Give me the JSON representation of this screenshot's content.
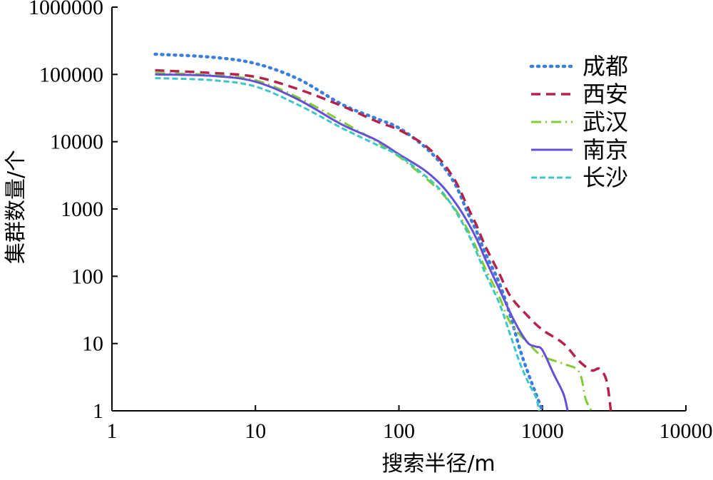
{
  "chart_data": {
    "type": "line",
    "xlabel": "搜索半径/m",
    "ylabel": "集群数量/个",
    "xscale": "log",
    "yscale": "log",
    "xlim": [
      1,
      10000
    ],
    "ylim": [
      1,
      1000000
    ],
    "xticks": [
      "1",
      "10",
      "100",
      "1000",
      "10000"
    ],
    "yticks": [
      "1",
      "10",
      "100",
      "1000",
      "10000",
      "100000",
      "1000000"
    ],
    "grid": false,
    "legend_position": "top-right",
    "series": [
      {
        "name": "成都",
        "color": "#3a7fdc",
        "dash": "dotted",
        "points": [
          [
            2,
            200000
          ],
          [
            5,
            180000
          ],
          [
            10,
            145000
          ],
          [
            20,
            85000
          ],
          [
            40,
            36000
          ],
          [
            70,
            22000
          ],
          [
            100,
            16000
          ],
          [
            150,
            8500
          ],
          [
            200,
            4500
          ],
          [
            250,
            2200
          ],
          [
            300,
            900
          ],
          [
            350,
            450
          ],
          [
            400,
            220
          ],
          [
            500,
            80
          ],
          [
            600,
            25
          ],
          [
            700,
            8
          ],
          [
            800,
            3.5
          ],
          [
            900,
            1.8
          ],
          [
            1000,
            1
          ]
        ]
      },
      {
        "name": "西安",
        "color": "#b3234a",
        "dash": "dashed",
        "points": [
          [
            2,
            115000
          ],
          [
            5,
            105000
          ],
          [
            10,
            92000
          ],
          [
            20,
            60000
          ],
          [
            40,
            34000
          ],
          [
            70,
            20000
          ],
          [
            100,
            15000
          ],
          [
            150,
            9000
          ],
          [
            200,
            5000
          ],
          [
            250,
            2500
          ],
          [
            300,
            1100
          ],
          [
            350,
            550
          ],
          [
            400,
            280
          ],
          [
            500,
            110
          ],
          [
            600,
            50
          ],
          [
            800,
            25
          ],
          [
            1000,
            16
          ],
          [
            1400,
            10
          ],
          [
            1800,
            5.5
          ],
          [
            2200,
            4
          ],
          [
            2500,
            4.2
          ],
          [
            2800,
            2.8
          ],
          [
            3000,
            1
          ]
        ]
      },
      {
        "name": "武汉",
        "color": "#7fcc33",
        "dash": "dashdot",
        "points": [
          [
            2,
            105000
          ],
          [
            5,
            98000
          ],
          [
            10,
            82000
          ],
          [
            20,
            45000
          ],
          [
            40,
            20000
          ],
          [
            70,
            10000
          ],
          [
            100,
            6000
          ],
          [
            150,
            3000
          ],
          [
            200,
            1700
          ],
          [
            250,
            950
          ],
          [
            300,
            500
          ],
          [
            350,
            250
          ],
          [
            400,
            130
          ],
          [
            500,
            50
          ],
          [
            600,
            20
          ],
          [
            800,
            10
          ],
          [
            1000,
            6.5
          ],
          [
            1400,
            5
          ],
          [
            1800,
            3.8
          ],
          [
            2000,
            1.5
          ],
          [
            2200,
            1
          ]
        ]
      },
      {
        "name": "南京",
        "color": "#6650d8",
        "dash": "solid",
        "points": [
          [
            2,
            100000
          ],
          [
            5,
            95000
          ],
          [
            10,
            78000
          ],
          [
            20,
            42000
          ],
          [
            40,
            18000
          ],
          [
            70,
            10500
          ],
          [
            100,
            6500
          ],
          [
            150,
            3800
          ],
          [
            200,
            2200
          ],
          [
            250,
            1200
          ],
          [
            300,
            650
          ],
          [
            350,
            350
          ],
          [
            400,
            180
          ],
          [
            500,
            65
          ],
          [
            600,
            28
          ],
          [
            700,
            15
          ],
          [
            800,
            10
          ],
          [
            900,
            9
          ],
          [
            1000,
            8
          ],
          [
            1200,
            3.5
          ],
          [
            1400,
            1.8
          ],
          [
            1500,
            1
          ]
        ]
      },
      {
        "name": "长沙",
        "color": "#3cc6c6",
        "dash": "shortdash",
        "points": [
          [
            2,
            88000
          ],
          [
            5,
            82000
          ],
          [
            10,
            66000
          ],
          [
            20,
            35000
          ],
          [
            40,
            16000
          ],
          [
            70,
            9000
          ],
          [
            100,
            6200
          ],
          [
            150,
            3200
          ],
          [
            200,
            1800
          ],
          [
            250,
            900
          ],
          [
            300,
            450
          ],
          [
            350,
            220
          ],
          [
            400,
            110
          ],
          [
            500,
            40
          ],
          [
            600,
            13
          ],
          [
            700,
            5
          ],
          [
            800,
            2.6
          ],
          [
            900,
            1.6
          ],
          [
            950,
            1
          ]
        ]
      }
    ]
  }
}
